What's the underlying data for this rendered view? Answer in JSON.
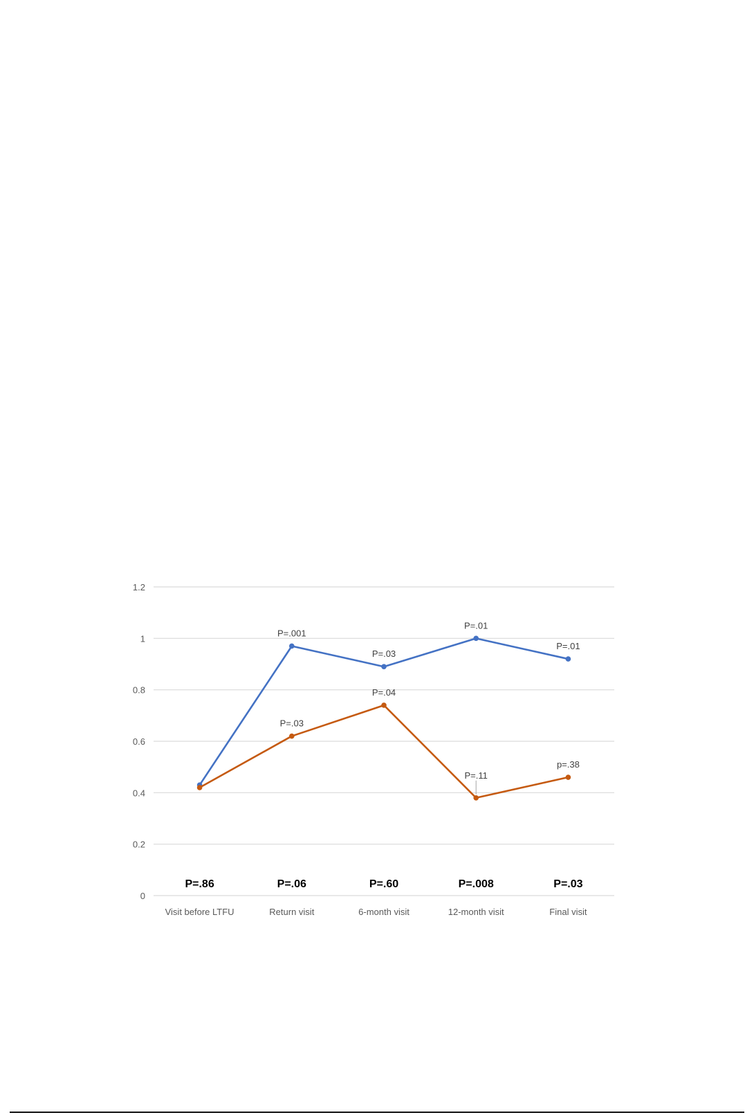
{
  "chart_data": {
    "type": "line",
    "categories": [
      "Visit before LTFU",
      "Return visit",
      "6-month visit",
      "12-month visit",
      "Final visit"
    ],
    "ylim": [
      0,
      1.2
    ],
    "yticks": [
      "0",
      "0.2",
      "0.4",
      "0.6",
      "0.8",
      "1",
      "1.2"
    ],
    "ytick_values": [
      0,
      0.2,
      0.4,
      0.6,
      0.8,
      1,
      1.2
    ],
    "grid": true,
    "series": [
      {
        "color": "#4472c4",
        "values": [
          0.43,
          0.97,
          0.89,
          1.0,
          0.92
        ],
        "point_labels": [
          "",
          "P=.001",
          "P=.03",
          "P=.01",
          "P=.01"
        ]
      },
      {
        "color": "#c55a11",
        "values": [
          0.42,
          0.62,
          0.74,
          0.38,
          0.46
        ],
        "point_labels": [
          "",
          "P=.03",
          "P=.04",
          "P=.11",
          "p=.38"
        ]
      }
    ],
    "bottom_p_values": [
      "P=.86",
      "P=.06",
      "P=.60",
      "P=.008",
      "P=.03"
    ]
  }
}
